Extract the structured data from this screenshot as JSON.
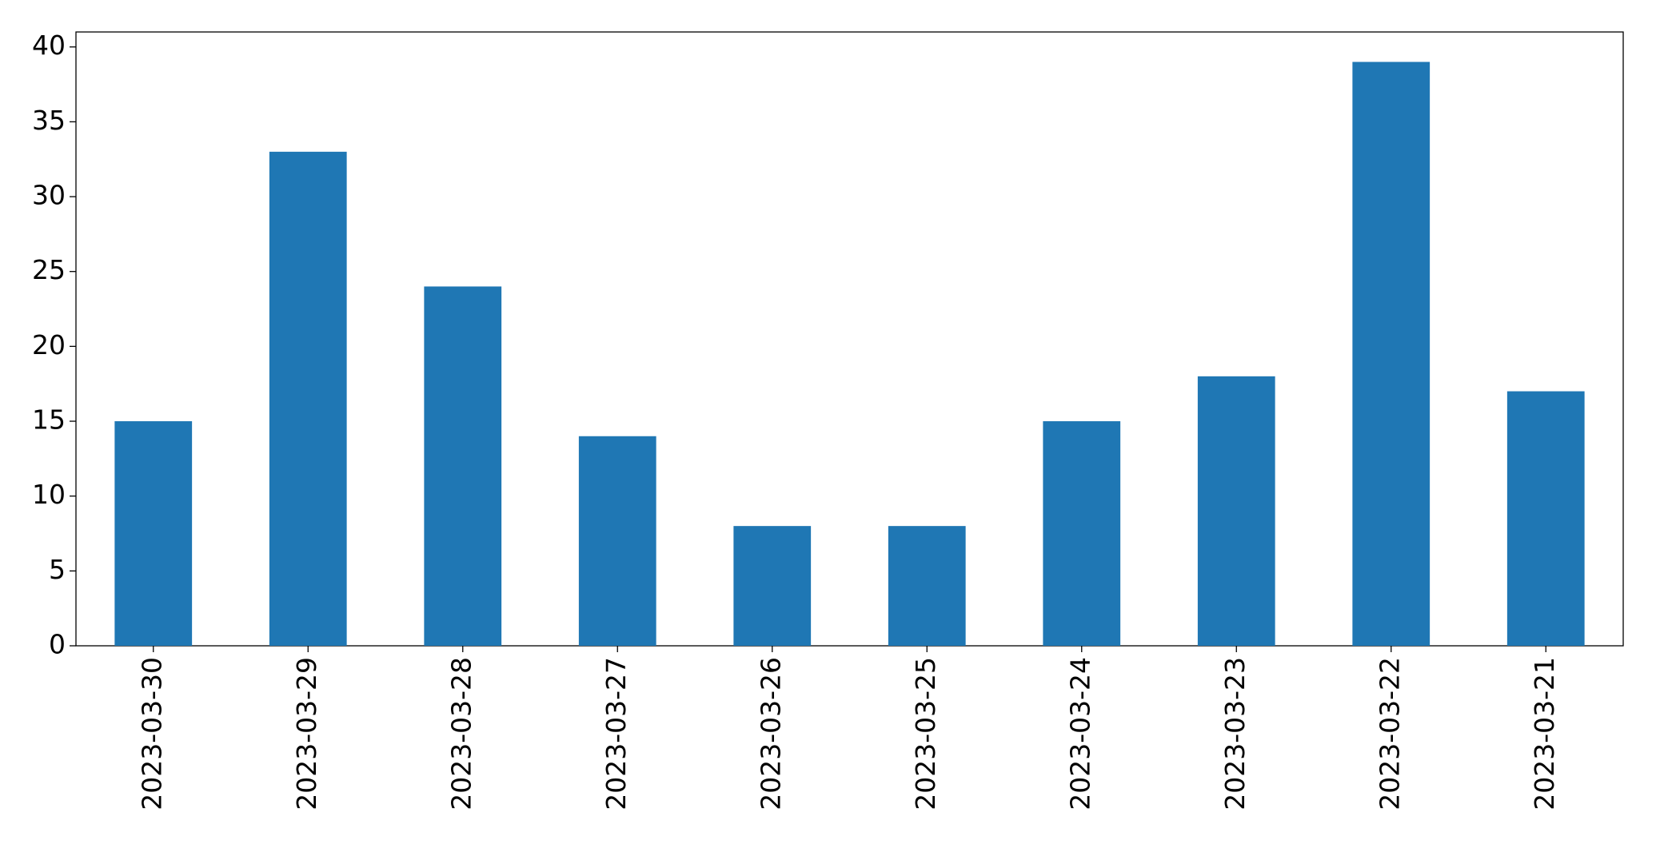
{
  "chart_data": {
    "type": "bar",
    "categories": [
      "2023-03-30",
      "2023-03-29",
      "2023-03-28",
      "2023-03-27",
      "2023-03-26",
      "2023-03-25",
      "2023-03-24",
      "2023-03-23",
      "2023-03-22",
      "2023-03-21"
    ],
    "values": [
      15,
      33,
      24,
      14,
      8,
      8,
      15,
      18,
      39,
      17
    ],
    "color": "#1f77b4",
    "ylim": [
      0,
      41
    ],
    "yticks": [
      0,
      5,
      10,
      15,
      20,
      25,
      30,
      35,
      40
    ],
    "grid": false
  }
}
